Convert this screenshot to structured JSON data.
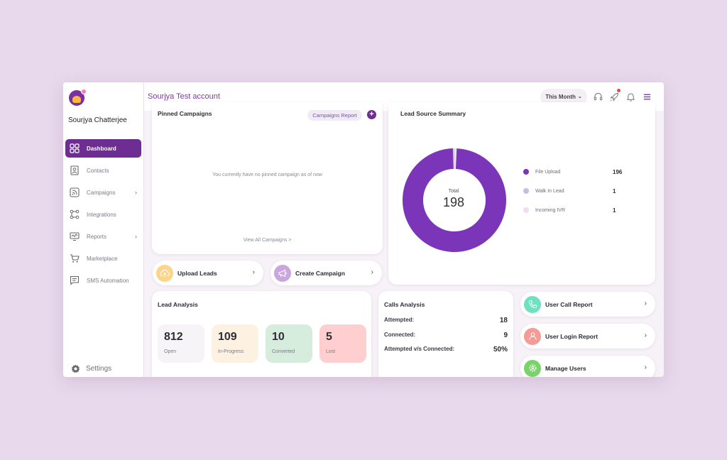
{
  "sidebar": {
    "username": "Sourjya Chatterjee",
    "items": [
      {
        "label": "Dashboard",
        "icon": "dashboard-icon"
      },
      {
        "label": "Contacts",
        "icon": "contacts-icon"
      },
      {
        "label": "Campaigns",
        "icon": "campaigns-icon"
      },
      {
        "label": "Integrations",
        "icon": "integrations-icon"
      },
      {
        "label": "Reports",
        "icon": "reports-icon"
      },
      {
        "label": "Marketplace",
        "icon": "cart-icon"
      },
      {
        "label": "SMS Automation",
        "icon": "sms-icon"
      }
    ],
    "settings_label": "Settings"
  },
  "header": {
    "account_name": "Sourjya Test account",
    "period_label": "This Month"
  },
  "pinned": {
    "title": "Pinned Campaigns",
    "report_button": "Campaigns Report",
    "add_symbol": "+",
    "empty_message": "You currently have no pinned campaign as of now",
    "view_all": "View All Campaigns >"
  },
  "lead_source": {
    "title": "Lead Source Summary",
    "total_label": "Total",
    "total_value": "198",
    "entries": [
      {
        "label": "File Upload",
        "value": 196,
        "color": "#7b35b8"
      },
      {
        "label": "Walk In Lead",
        "value": 1,
        "color": "#cfb7e6"
      },
      {
        "label": "Incoming IVR",
        "value": 1,
        "color": "#f1dcf1"
      }
    ]
  },
  "quick_actions": {
    "upload_leads": "Upload Leads",
    "create_campaign": "Create Campaign"
  },
  "lead_analysis": {
    "title": "Lead Analysis",
    "stats": [
      {
        "value": "812",
        "label": "Open",
        "bg": "#f6f4f6"
      },
      {
        "value": "109",
        "label": "In-Progress",
        "bg": "#fdf1e2"
      },
      {
        "value": "10",
        "label": "Converted",
        "bg": "#d6ecdd"
      },
      {
        "value": "5",
        "label": "Lost",
        "bg": "#ffcfcf"
      }
    ]
  },
  "calls_analysis": {
    "title": "Calls Analysis",
    "rows": [
      {
        "label": "Attempted:",
        "value": "18"
      },
      {
        "label": "Connected:",
        "value": "9"
      },
      {
        "label": "Attempted v/s Connected:",
        "value": "50%"
      }
    ]
  },
  "reports": {
    "user_call_report": "User Call Report",
    "user_login_report": "User Login Report",
    "manage_users": "Manage Users"
  },
  "colors": {
    "brand": "#6d2d91",
    "accent_purple": "#7b35b8"
  }
}
